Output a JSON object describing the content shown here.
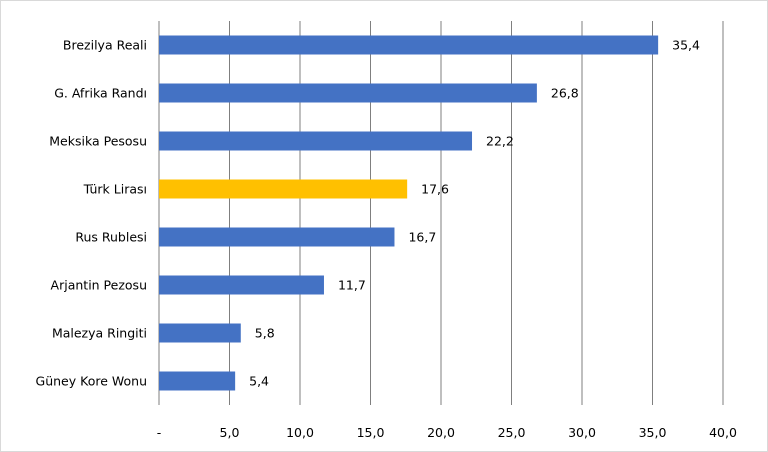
{
  "chart_data": {
    "type": "bar",
    "orientation": "horizontal",
    "categories": [
      "Brezilya Reali",
      "G. Afrika Randı",
      "Meksika Pesosu",
      "Türk Lirası",
      "Rus Rublesi",
      "Arjantin Pezosu",
      "Malezya Ringiti",
      "Güney Kore Wonu"
    ],
    "values": [
      35.4,
      26.8,
      22.2,
      17.6,
      16.7,
      11.7,
      5.8,
      5.4
    ],
    "value_labels": [
      "35,4",
      "26,8",
      "22,2",
      "17,6",
      "16,7",
      "11,7",
      "5,8",
      "5,4"
    ],
    "highlight_category": "Türk Lirası",
    "xlim": [
      0,
      40
    ],
    "x_ticks": [
      0,
      5,
      10,
      15,
      20,
      25,
      30,
      35,
      40
    ],
    "x_tick_labels": [
      "-",
      "5,0",
      "10,0",
      "15,0",
      "20,0",
      "25,0",
      "30,0",
      "35,0",
      "40,0"
    ],
    "grid": "vertical",
    "legend": "none",
    "colors": {
      "bar": "#4472C4",
      "highlight": "#FFC000",
      "grid": "#7f7f7f"
    }
  }
}
